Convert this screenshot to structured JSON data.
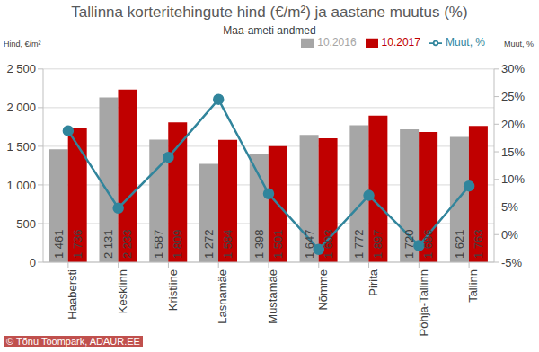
{
  "chart_data": {
    "type": "bar",
    "title": "Tallinna korteritehingute hind (€/m²) ja aastane muutus (%)",
    "subtitle": "Maa-ameti andmed",
    "y_label": "Hind, €/m²",
    "y2_label": "Muut, %",
    "source": "© Tõnu Toompark, ADAUR.EE",
    "categories": [
      "Haabersti",
      "Kesklinn",
      "Kristiine",
      "Lasnamäe",
      "Mustamäe",
      "Nõmme",
      "Pirita",
      "Põhja-Tallinn",
      "Tallinn"
    ],
    "series": [
      {
        "name": "10.2016",
        "color": "#a6a6a6",
        "values": [
          1461,
          2131,
          1587,
          1272,
          1398,
          1647,
          1772,
          1720,
          1621
        ],
        "value_labels": [
          "1 461",
          "2 131",
          "1 587",
          "1 272",
          "1 398",
          "1 647",
          "1 772",
          "1 720",
          "1 621"
        ]
      },
      {
        "name": "10.2017",
        "color": "#c00000",
        "values": [
          1736,
          2233,
          1809,
          1584,
          1501,
          1603,
          1897,
          1686,
          1763
        ],
        "value_labels": [
          "1 736",
          "2 233",
          "1 809",
          "1 584",
          "1 501",
          "1 603",
          "1 897",
          "1 686",
          "1 763"
        ]
      },
      {
        "name": "Muut, %",
        "type": "line",
        "color": "#31859c",
        "marker": "circle",
        "axis": "y2",
        "values": [
          18.8,
          4.8,
          14.0,
          24.5,
          7.4,
          -2.7,
          7.1,
          -2.0,
          8.8
        ]
      }
    ],
    "ylim": [
      0,
      2500
    ],
    "yticks": [
      0,
      {
        "value": 500,
        "label": "500"
      },
      {
        "value": 1000,
        "label": "1 000"
      },
      {
        "value": 1500,
        "label": "1 500"
      },
      {
        "value": 2000,
        "label": "2 000"
      },
      {
        "value": 2500,
        "label": "2 500"
      }
    ],
    "y2lim": [
      -5,
      30
    ],
    "y2ticks": [
      {
        "value": -5,
        "label": "-5%"
      },
      {
        "value": 0,
        "label": "0%"
      },
      {
        "value": 5,
        "label": "5%"
      },
      {
        "value": 10,
        "label": "10%"
      },
      {
        "value": 15,
        "label": "15%"
      },
      {
        "value": 20,
        "label": "20%"
      },
      {
        "value": 25,
        "label": "25%"
      },
      {
        "value": 30,
        "label": "30%"
      }
    ],
    "grid": true,
    "legend": "top right",
    "data_labels": true
  }
}
